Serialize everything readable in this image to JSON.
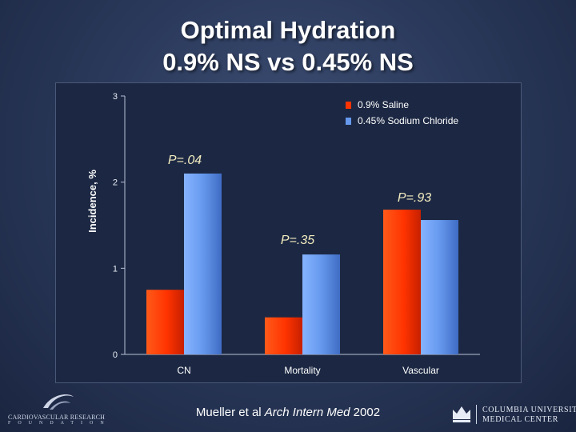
{
  "title_line1": "Optimal Hydration",
  "title_line2": "0.9% NS vs 0.45% NS",
  "chart_data": {
    "type": "bar",
    "ylabel": "Incidence, %",
    "ylim": [
      0,
      3
    ],
    "yticks": [
      0,
      1,
      2,
      3
    ],
    "categories": [
      "CN",
      "Mortality",
      "Vascular"
    ],
    "series": [
      {
        "name": "0.9% Saline",
        "color": "#ff3300",
        "values": [
          0.75,
          0.43,
          1.68
        ]
      },
      {
        "name": "0.45% Sodium Chloride",
        "color": "#6699ee",
        "values": [
          2.1,
          1.16,
          1.56
        ]
      }
    ],
    "annotations": [
      "P=.04",
      "P=.35",
      "P=.93"
    ],
    "legend_position": "top-right",
    "grid": false
  },
  "footer": {
    "author": "Mueller et al ",
    "journal": "Arch Intern Med",
    "year": " 2002"
  },
  "logo_left": {
    "line1": "CARDIOVASCULAR RESEARCH",
    "line2": "FOUNDATION"
  },
  "logo_right": {
    "line1": "COLUMBIA UNIVERSITY",
    "line2": "MEDICAL CENTER"
  }
}
